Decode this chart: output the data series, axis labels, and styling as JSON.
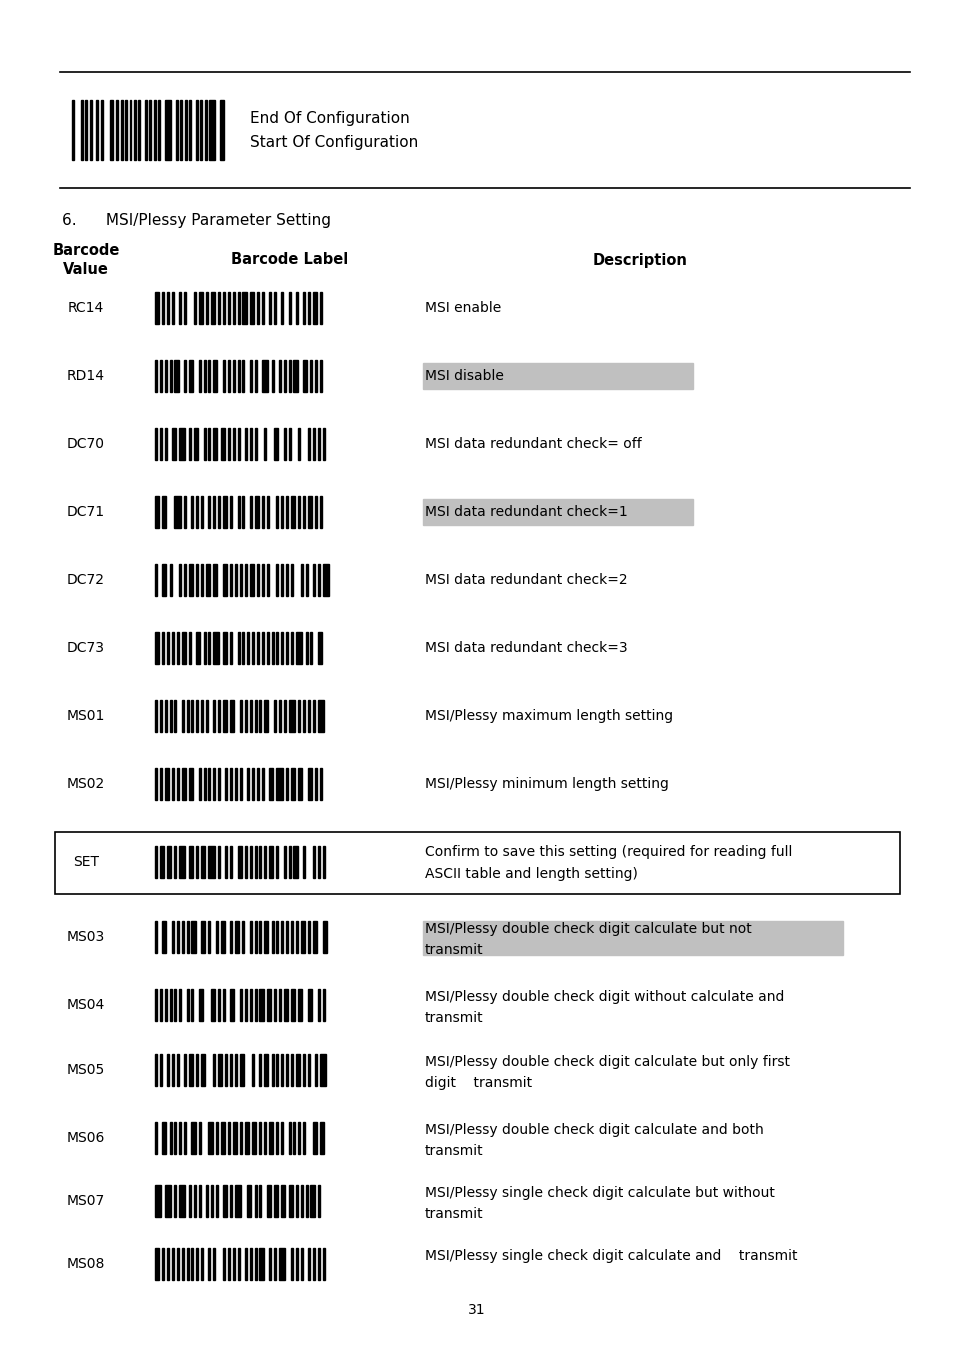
{
  "bg_color": "#ffffff",
  "header_barcode_text1": "End Of Configuration",
  "header_barcode_text2": "Start Of Configuration",
  "section_title": "6.      MSI/Plessy Parameter Setting",
  "col_header1": "Barcode\nValue",
  "col_header2": "Barcode Label",
  "col_header3": "Description",
  "rows": [
    {
      "code": "RC14",
      "desc": "MSI enable",
      "highlight": false
    },
    {
      "code": "RD14",
      "desc": "MSI disable",
      "highlight": true
    },
    {
      "code": "DC70",
      "desc": "MSI data redundant check= off",
      "highlight": false
    },
    {
      "code": "DC71",
      "desc": "MSI data redundant check=1",
      "highlight": true
    },
    {
      "code": "DC72",
      "desc": "MSI data redundant check=2",
      "highlight": false
    },
    {
      "code": "DC73",
      "desc": "MSI data redundant check=3",
      "highlight": false
    },
    {
      "code": "MS01",
      "desc": "MSI/Plessy maximum length setting",
      "highlight": false
    },
    {
      "code": "MS02",
      "desc": "MSI/Plessy minimum length setting",
      "highlight": false
    }
  ],
  "set_code": "SET",
  "set_desc1": "Confirm to save this setting (required for reading full",
  "set_desc2": "ASCII table and length setting)",
  "rows2": [
    {
      "code": "MS03",
      "desc1": "MSI/Plessy double check digit calculate but not",
      "desc2": "transmit",
      "highlight": true
    },
    {
      "code": "MS04",
      "desc1": "MSI/Plessy double check digit without calculate and",
      "desc2": "transmit",
      "highlight": false
    },
    {
      "code": "MS05",
      "desc1": "MSI/Plessy double check digit calculate but only first",
      "desc2": "digit    transmit",
      "highlight": false
    },
    {
      "code": "MS06",
      "desc1": "MSI/Plessy double check digit calculate and both",
      "desc2": "transmit",
      "highlight": false
    },
    {
      "code": "MS07",
      "desc1": "MSI/Plessy single check digit calculate but without",
      "desc2": "transmit",
      "highlight": false
    },
    {
      "code": "MS08",
      "desc1": "MSI/Plessy single check digit calculate and    transmit",
      "desc2": "",
      "highlight": false
    }
  ],
  "page_number": "31",
  "highlight_color": "#c0c0c0",
  "text_color": "#000000"
}
